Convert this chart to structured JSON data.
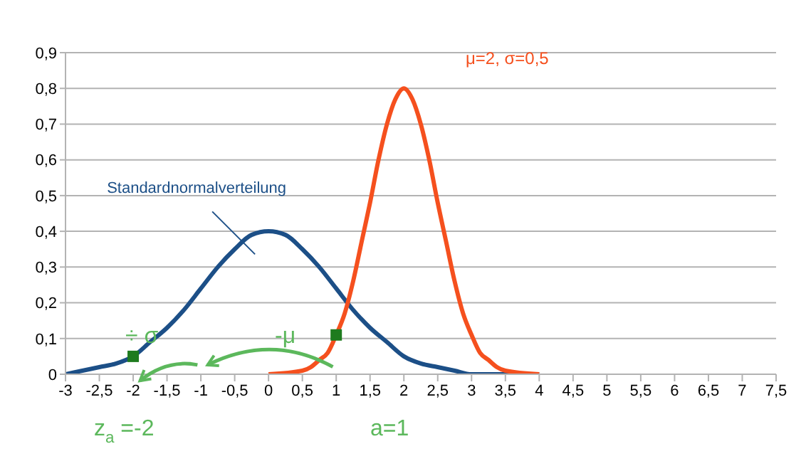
{
  "chart_data": {
    "type": "line",
    "xlim": [
      -3,
      7.5
    ],
    "ylim": [
      0,
      0.9
    ],
    "xticks": [
      -3,
      {
        "value": -2.5,
        "label": "-2,5"
      },
      -2,
      {
        "value": -1.5,
        "label": "-1,5"
      },
      -1,
      {
        "value": -0.5,
        "label": "-0,5"
      },
      0,
      {
        "value": 0.5,
        "label": "0,5"
      },
      1,
      {
        "value": 1.5,
        "label": "1,5"
      },
      2,
      {
        "value": 2.5,
        "label": "2,5"
      },
      3,
      {
        "value": 3.5,
        "label": "3,5"
      },
      4,
      {
        "value": 4.5,
        "label": "4,5"
      },
      5,
      {
        "value": 5.5,
        "label": "5,5"
      },
      6,
      {
        "value": 6.5,
        "label": "6,5"
      },
      7,
      {
        "value": 7.5,
        "label": "7,5"
      }
    ],
    "yticks": [
      0,
      {
        "value": 0.1,
        "label": "0,1"
      },
      {
        "value": 0.2,
        "label": "0,2"
      },
      {
        "value": 0.3,
        "label": "0,3"
      },
      {
        "value": 0.4,
        "label": "0,4"
      },
      {
        "value": 0.5,
        "label": "0,5"
      },
      {
        "value": 0.6,
        "label": "0,6"
      },
      {
        "value": 0.7,
        "label": "0,7"
      },
      {
        "value": 0.8,
        "label": "0,8"
      },
      {
        "value": 0.9,
        "label": "0,9"
      }
    ],
    "grid": "y",
    "legend": false,
    "series": [
      {
        "marker": "none",
        "color": "#1c4f87",
        "x": [
          -3,
          -2.75,
          -2.5,
          -2.25,
          -2,
          -1.75,
          -1.5,
          -1.25,
          -1,
          -0.75,
          -0.5,
          -0.25,
          0,
          0.25,
          0.5,
          0.75,
          1,
          1.25,
          1.5,
          1.75,
          2,
          2.25,
          2.5,
          2.75,
          3,
          3.5,
          4
        ],
        "values": [
          0.0,
          0.01,
          0.02,
          0.03,
          0.05,
          0.09,
          0.13,
          0.18,
          0.24,
          0.3,
          0.35,
          0.39,
          0.4,
          0.39,
          0.35,
          0.3,
          0.24,
          0.18,
          0.13,
          0.09,
          0.05,
          0.03,
          0.02,
          0.01,
          0.0,
          0.0,
          0.0
        ]
      },
      {
        "marker": "none",
        "color": "#f5501e",
        "x": [
          0,
          0.5,
          0.625,
          0.75,
          0.875,
          1,
          1.125,
          1.25,
          1.375,
          1.5,
          1.625,
          1.75,
          1.875,
          2,
          2.125,
          2.25,
          2.375,
          2.5,
          2.625,
          2.75,
          2.875,
          3,
          3.125,
          3.25,
          3.375,
          3.5,
          4
        ],
        "values": [
          0.0,
          0.01,
          0.02,
          0.04,
          0.06,
          0.11,
          0.17,
          0.26,
          0.37,
          0.48,
          0.6,
          0.7,
          0.77,
          0.8,
          0.77,
          0.7,
          0.6,
          0.48,
          0.37,
          0.26,
          0.17,
          0.11,
          0.06,
          0.04,
          0.02,
          0.01,
          0.0
        ]
      },
      {
        "type": "scatter",
        "marker": "square",
        "color": "#1e7b1e",
        "x": [
          -2,
          1
        ],
        "values": [
          0.05,
          0.11
        ]
      }
    ],
    "annotations": [
      {
        "text": "Standardnormalverteilung",
        "x": -0.2,
        "y": 0.39
      },
      "μ=2, σ=0,5",
      "÷ σ",
      "-μ",
      "z$_{a}$ =-2",
      "a=1"
    ]
  }
}
